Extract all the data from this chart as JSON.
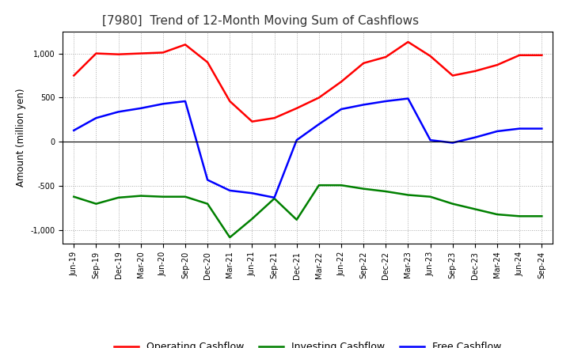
{
  "title": "[7980]  Trend of 12-Month Moving Sum of Cashflows",
  "ylabel": "Amount (million yen)",
  "xlabels": [
    "Jun-19",
    "Sep-19",
    "Dec-19",
    "Mar-20",
    "Jun-20",
    "Sep-20",
    "Dec-20",
    "Mar-21",
    "Jun-21",
    "Sep-21",
    "Dec-21",
    "Mar-22",
    "Jun-22",
    "Sep-22",
    "Dec-22",
    "Mar-23",
    "Jun-23",
    "Sep-23",
    "Dec-23",
    "Mar-24",
    "Jun-24",
    "Sep-24"
  ],
  "operating": [
    750,
    1000,
    990,
    1000,
    1010,
    1100,
    900,
    460,
    230,
    270,
    380,
    500,
    680,
    890,
    960,
    1130,
    970,
    750,
    800,
    870,
    980,
    980
  ],
  "investing": [
    -620,
    -700,
    -630,
    -610,
    -620,
    -620,
    -700,
    -1080,
    -870,
    -640,
    -880,
    -490,
    -490,
    -530,
    -560,
    -600,
    -620,
    -700,
    -760,
    -820,
    -840,
    -840
  ],
  "free": [
    130,
    270,
    340,
    380,
    430,
    460,
    -430,
    -550,
    -580,
    -630,
    20,
    200,
    370,
    420,
    460,
    490,
    20,
    -10,
    50,
    120,
    150,
    150
  ],
  "ylim": [
    -1150,
    1250
  ],
  "yticks": [
    -1000,
    -500,
    0,
    500,
    1000
  ],
  "operating_color": "#ff0000",
  "investing_color": "#008000",
  "free_color": "#0000ff",
  "bg_color": "#ffffff",
  "plot_bg_color": "#ffffff",
  "grid_color": "#aaaaaa",
  "linewidth": 1.8,
  "title_color": "#333333",
  "title_fontsize": 11,
  "tick_fontsize": 7,
  "ylabel_fontsize": 8.5,
  "legend_fontsize": 9
}
